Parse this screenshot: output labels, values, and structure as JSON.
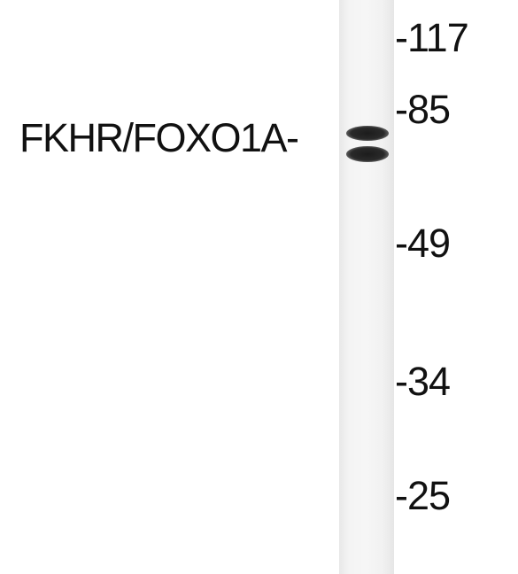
{
  "blot": {
    "protein_label": "FKHR/FOXO1A-",
    "markers": [
      {
        "label": "-117"
      },
      {
        "label": "-85"
      },
      {
        "label": "-49"
      },
      {
        "label": "-34"
      },
      {
        "label": "-25"
      }
    ],
    "band_color": "#1c1c1c",
    "lane_color": "#f4f4f4"
  }
}
